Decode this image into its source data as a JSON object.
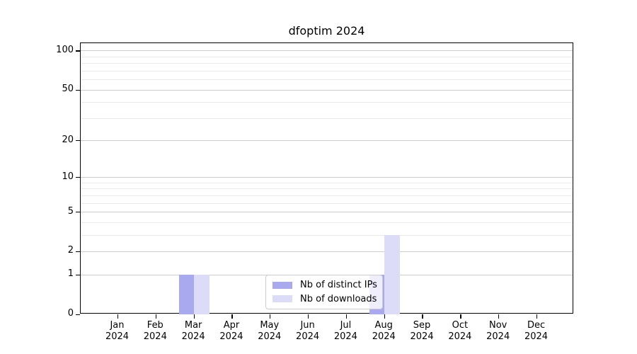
{
  "chart_data": {
    "type": "bar",
    "title": "dfoptim 2024",
    "categories": [
      "Jan",
      "Feb",
      "Mar",
      "Apr",
      "May",
      "Jun",
      "Jul",
      "Aug",
      "Sep",
      "Oct",
      "Nov",
      "Dec"
    ],
    "year_label": "2024",
    "series": [
      {
        "name": "Nb of distinct IPs",
        "color": "#a9a9f0",
        "values": [
          0,
          0,
          1,
          0,
          0,
          0,
          0,
          1,
          0,
          0,
          0,
          0
        ]
      },
      {
        "name": "Nb of downloads",
        "color": "#dcdcf8",
        "values": [
          0,
          0,
          1,
          0,
          0,
          0,
          0,
          3,
          0,
          0,
          0,
          0
        ]
      }
    ],
    "yscale": "log1p",
    "yticks": [
      0,
      1,
      2,
      5,
      10,
      20,
      50,
      100
    ],
    "minor_yticks": [
      3,
      4,
      6,
      7,
      8,
      9,
      30,
      40,
      60,
      70,
      80,
      90
    ],
    "ylim": [
      0,
      114.7
    ],
    "xlabel": "",
    "ylabel": "",
    "grid": "horizontal major and minor",
    "legend_position": "lower center",
    "colors": {
      "major_grid": "#cccccc",
      "minor_grid": "#eaeaea",
      "spine": "#000000",
      "text": "#000000",
      "background": "#ffffff"
    }
  }
}
